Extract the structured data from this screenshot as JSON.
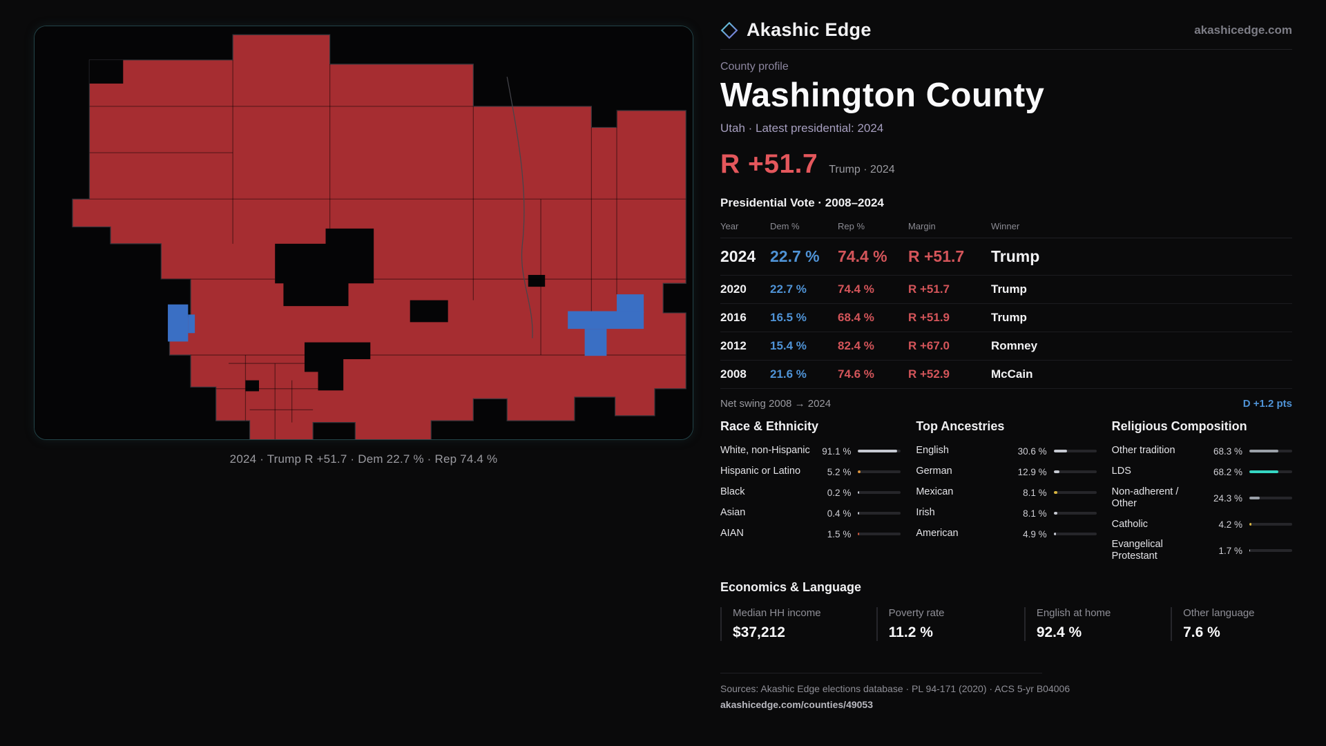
{
  "brand": {
    "name": "Akashic Edge",
    "domain": "akashicedge.com"
  },
  "theme": {
    "rep_red": "#d4555a",
    "dem_blue": "#4f93d6",
    "map_rep": "#a62d31",
    "map_dem": "#3a6fc4",
    "teal": "#35d6c3",
    "gold": "#d8b53f",
    "orange": "#e0953c",
    "background": "#0a0a0b",
    "panel_border": "#234449"
  },
  "map": {
    "caption": "2024 · Trump R +51.7 · Dem 22.7 % · Rep 74.4 %"
  },
  "profile": {
    "eyebrow": "County profile",
    "title": "Washington County",
    "subtitle": "Utah · Latest presidential: 2024",
    "headline_margin": "R +51.7",
    "headline_note": "Trump · 2024"
  },
  "vote_table": {
    "title": "Presidential Vote · 2008–2024",
    "columns": [
      "Year",
      "Dem %",
      "Rep %",
      "Margin",
      "Winner"
    ],
    "rows": [
      {
        "year": "2024",
        "dem": "22.7 %",
        "rep": "74.4 %",
        "margin": "R +51.7",
        "winner": "Trump"
      },
      {
        "year": "2020",
        "dem": "22.7 %",
        "rep": "74.4 %",
        "margin": "R +51.7",
        "winner": "Trump"
      },
      {
        "year": "2016",
        "dem": "16.5 %",
        "rep": "68.4 %",
        "margin": "R +51.9",
        "winner": "Trump"
      },
      {
        "year": "2012",
        "dem": "15.4 %",
        "rep": "82.4 %",
        "margin": "R +67.0",
        "winner": "Romney"
      },
      {
        "year": "2008",
        "dem": "21.6 %",
        "rep": "74.6 %",
        "margin": "R +52.9",
        "winner": "McCain"
      }
    ],
    "net_swing_label": "Net swing 2008 → 2024",
    "net_swing_value": "D +1.2 pts"
  },
  "demographics": {
    "race": {
      "title": "Race & Ethnicity",
      "rows": [
        {
          "label": "White, non-Hispanic",
          "value": "91.1 %",
          "pct": 91.1,
          "color": "#c6c9d2"
        },
        {
          "label": "Hispanic or Latino",
          "value": "5.2 %",
          "pct": 5.2,
          "color": "#e0953c"
        },
        {
          "label": "Black",
          "value": "0.2 %",
          "pct": 0.2,
          "color": "#c6c9d2"
        },
        {
          "label": "Asian",
          "value": "0.4 %",
          "pct": 0.4,
          "color": "#c6c9d2"
        },
        {
          "label": "AIAN",
          "value": "1.5 %",
          "pct": 1.5,
          "color": "#d2593c"
        }
      ]
    },
    "ancestries": {
      "title": "Top Ancestries",
      "rows": [
        {
          "label": "English",
          "value": "30.6 %",
          "pct": 30.6,
          "color": "#c6c9d2"
        },
        {
          "label": "German",
          "value": "12.9 %",
          "pct": 12.9,
          "color": "#c6c9d2"
        },
        {
          "label": "Mexican",
          "value": "8.1 %",
          "pct": 8.1,
          "color": "#d8b53f"
        },
        {
          "label": "Irish",
          "value": "8.1 %",
          "pct": 8.1,
          "color": "#c6c9d2"
        },
        {
          "label": "American",
          "value": "4.9 %",
          "pct": 4.9,
          "color": "#c6c9d2"
        }
      ]
    },
    "religion": {
      "title": "Religious Composition",
      "rows": [
        {
          "label": "Other tradition",
          "value": "68.3 %",
          "pct": 68.3,
          "color": "#9aa0a8"
        },
        {
          "label": "LDS",
          "value": "68.2 %",
          "pct": 68.2,
          "color": "#35d6c3"
        },
        {
          "label": "Non-adherent / Other",
          "value": "24.3 %",
          "pct": 24.3,
          "color": "#9aa0a8"
        },
        {
          "label": "Catholic",
          "value": "4.2 %",
          "pct": 4.2,
          "color": "#d8b53f"
        },
        {
          "label": "Evangelical Protestant",
          "value": "1.7 %",
          "pct": 1.7,
          "color": "#c6c9d2"
        }
      ]
    }
  },
  "economics": {
    "title": "Economics & Language",
    "stats": [
      {
        "label": "Median HH income",
        "value": "$37,212"
      },
      {
        "label": "Poverty rate",
        "value": "11.2 %"
      },
      {
        "label": "English at home",
        "value": "92.4 %"
      },
      {
        "label": "Other language",
        "value": "7.6 %"
      }
    ]
  },
  "footer": {
    "sources": "Sources: Akashic Edge elections database · PL 94-171 (2020) · ACS 5-yr B04006",
    "permalink": "akashicedge.com/counties/49053"
  }
}
